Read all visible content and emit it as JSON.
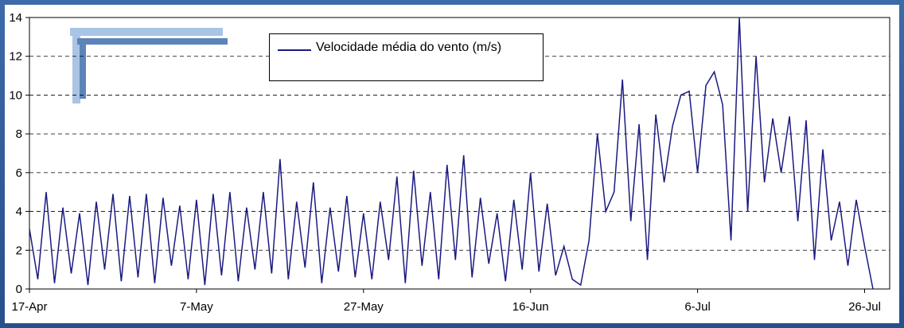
{
  "chart_data": {
    "type": "line",
    "x": [
      "17-Apr",
      "18-Apr",
      "19-Apr",
      "20-Apr",
      "21-Apr",
      "22-Apr",
      "23-Apr",
      "24-Apr",
      "25-Apr",
      "26-Apr",
      "27-Apr",
      "28-Apr",
      "29-Apr",
      "30-Apr",
      "1-May",
      "2-May",
      "3-May",
      "4-May",
      "5-May",
      "6-May",
      "7-May",
      "8-May",
      "9-May",
      "10-May",
      "11-May",
      "12-May",
      "13-May",
      "14-May",
      "15-May",
      "16-May",
      "17-May",
      "18-May",
      "19-May",
      "20-May",
      "21-May",
      "22-May",
      "23-May",
      "24-May",
      "25-May",
      "26-May",
      "27-May",
      "28-May",
      "29-May",
      "30-May",
      "31-May",
      "1-Jun",
      "2-Jun",
      "3-Jun",
      "4-Jun",
      "5-Jun",
      "6-Jun",
      "7-Jun",
      "8-Jun",
      "9-Jun",
      "10-Jun",
      "11-Jun",
      "12-Jun",
      "13-Jun",
      "14-Jun",
      "15-Jun",
      "16-Jun",
      "17-Jun",
      "18-Jun",
      "19-Jun",
      "20-Jun",
      "21-Jun",
      "22-Jun",
      "23-Jun",
      "24-Jun",
      "25-Jun",
      "26-Jun",
      "27-Jun",
      "28-Jun",
      "29-Jun",
      "30-Jun",
      "1-Jul",
      "2-Jul",
      "3-Jul",
      "4-Jul",
      "5-Jul",
      "6-Jul",
      "7-Jul",
      "8-Jul",
      "9-Jul",
      "10-Jul",
      "11-Jul",
      "12-Jul",
      "13-Jul",
      "14-Jul",
      "15-Jul",
      "16-Jul",
      "17-Jul",
      "18-Jul",
      "19-Jul",
      "20-Jul",
      "21-Jul",
      "22-Jul",
      "23-Jul",
      "24-Jul",
      "25-Jul",
      "26-Jul",
      "27-Jul"
    ],
    "series": [
      {
        "name": "Velocidade média do vento (m/s)",
        "color": "#1a1a80",
        "values": [
          3.1,
          0.5,
          5,
          0.3,
          4.2,
          0.8,
          3.9,
          0.2,
          4.5,
          1,
          4.9,
          0.4,
          4.8,
          0.6,
          4.9,
          0.3,
          4.7,
          1.2,
          4.3,
          0.5,
          4.6,
          0.2,
          4.9,
          0.7,
          5,
          0.4,
          4.2,
          1,
          5,
          0.8,
          6.7,
          0.5,
          4.5,
          1.1,
          5.5,
          0.3,
          4.2,
          0.9,
          4.8,
          0.6,
          3.9,
          0.5,
          4.5,
          1.5,
          5.8,
          0.3,
          6.1,
          1.2,
          5,
          0.5,
          6.4,
          1.5,
          6.9,
          0.6,
          4.7,
          1.3,
          3.9,
          0.4,
          4.6,
          1,
          6,
          0.9,
          4.4,
          0.7,
          2.2,
          0.5,
          0.2,
          2.5,
          8,
          4,
          5,
          10.8,
          3.5,
          8.5,
          1.5,
          9,
          5.5,
          8.4,
          10,
          10.2,
          6,
          10.5,
          11.2,
          9.5,
          2.5,
          14,
          4,
          12,
          5.5,
          8.8,
          6,
          8.9,
          3.5,
          8.7,
          1.5,
          7.2,
          2.5,
          4.5,
          1.2,
          4.6,
          2.2,
          0
        ]
      }
    ],
    "xlim": [
      "17-Apr",
      "29-Jul"
    ],
    "xticks": [
      "17-Apr",
      "7-May",
      "27-May",
      "16-Jun",
      "6-Jul",
      "26-Jul"
    ],
    "ylim": [
      0,
      14
    ],
    "yticks": [
      0,
      2,
      4,
      6,
      8,
      10,
      12,
      14
    ],
    "grid": true
  }
}
